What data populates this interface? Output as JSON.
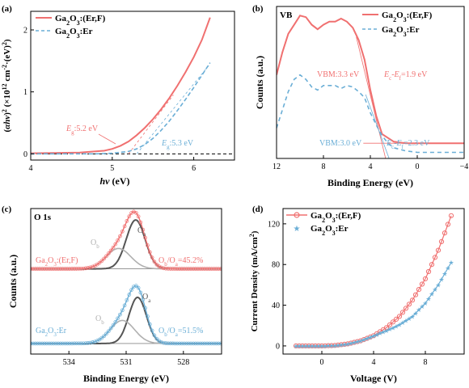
{
  "colors": {
    "red": "#f07070",
    "blue": "#6aaed6",
    "dark": "#555555",
    "light": "#b0b0b0"
  },
  "panels": {
    "a": {
      "label": "(a)",
      "legend": [
        {
          "base": "Ga",
          "sub1": "2",
          "mid": "O",
          "sub2": "3",
          "tail": ":(Er,F)"
        },
        {
          "base": "Ga",
          "sub1": "2",
          "mid": "O",
          "sub2": "3",
          "tail": ":Er"
        }
      ],
      "xlabel": "hν (eV)",
      "ylabel": "(αhν)² (×10¹² cm⁻²·(eV)²)",
      "ann_red": {
        "e": "E",
        "sub": "g",
        "val": ":5.2 eV"
      },
      "ann_blue": {
        "e": "E",
        "sub": "g",
        "val": ":5.3 eV"
      }
    },
    "b": {
      "label": "(b)",
      "tag": "VB",
      "legend": [
        {
          "base": "Ga",
          "sub1": "2",
          "mid": "O",
          "sub2": "3",
          "tail": ":(Er,F)"
        },
        {
          "base": "Ga",
          "sub1": "2",
          "mid": "O",
          "sub2": "3",
          "tail": ":Er"
        }
      ],
      "xlabel": "Binding Energy (eV)",
      "ylabel": "Counts (a.u.)",
      "ann_red_vbm": "VBM:3.3 eV",
      "ann_red_diff": {
        "a": "E",
        "asub": "c",
        "b": "-E",
        "bsub": "f",
        "val": "=1.9 eV"
      },
      "ann_blue_vbm": "VBM:3.0 eV",
      "ann_blue_diff": {
        "a": "E",
        "asub": "c",
        "b": "-E",
        "bsub": "f",
        "val": "=2.3 eV"
      }
    },
    "c": {
      "label": "(c)",
      "tag": "O 1s",
      "xlabel": "Binding Energy (eV)",
      "ylabel": "Counts (a.u.)",
      "sample_red": {
        "base": "Ga",
        "sub1": "2",
        "mid": "O",
        "sub2": "3",
        "tail": ":(Er,F)"
      },
      "sample_blue": {
        "base": "Ga",
        "sub1": "2",
        "mid": "O",
        "sub2": "3",
        "tail": ":Er"
      },
      "ratio_red": {
        "a": "O",
        "asub": "b",
        "b": "/O",
        "bsub": "a",
        "val": "=45.2%"
      },
      "ratio_blue": {
        "a": "O",
        "asub": "b",
        "b": "/O",
        "bsub": "a",
        "val": "=51.5%"
      },
      "peak_oa": {
        "base": "O",
        "sub": "a"
      },
      "peak_ob": {
        "base": "O",
        "sub": "b"
      }
    },
    "d": {
      "label": "(d)",
      "legend": [
        {
          "base": "Ga",
          "sub1": "2",
          "mid": "O",
          "sub2": "3",
          "tail": ":(Er,F)"
        },
        {
          "base": "Ga",
          "sub1": "2",
          "mid": "O",
          "sub2": "3",
          "tail": ":Er"
        }
      ],
      "xlabel": "Voltage (V)",
      "ylabel": "Current Density (mA/cm²)"
    }
  },
  "chart_data": [
    {
      "panel": "a",
      "type": "line",
      "xlabel": "hν (eV)",
      "ylabel": "(αhν)² (×10¹² cm⁻²·(eV)²)",
      "xlim": [
        4,
        6.5
      ],
      "ylim": [
        -0.1,
        2.3
      ],
      "xticks": [
        4,
        5,
        6
      ],
      "yticks": [
        0,
        1,
        2
      ],
      "series": [
        {
          "name": "Ga2O3:(Er,F)",
          "style": "solid",
          "color": "#f07070",
          "x": [
            4.0,
            4.6,
            4.9,
            5.0,
            5.1,
            5.2,
            5.3,
            5.4,
            5.5,
            5.6,
            5.7,
            5.8,
            5.9,
            6.0,
            6.1,
            6.2
          ],
          "y": [
            0.01,
            0.02,
            0.05,
            0.08,
            0.13,
            0.2,
            0.3,
            0.42,
            0.56,
            0.72,
            0.9,
            1.1,
            1.32,
            1.56,
            1.84,
            2.2
          ]
        },
        {
          "name": "Ga2O3:Er",
          "style": "dashed",
          "color": "#6aaed6",
          "x": [
            4.0,
            4.8,
            5.0,
            5.2,
            5.3,
            5.4,
            5.5,
            5.6,
            5.7,
            5.8,
            5.9,
            6.0,
            6.1,
            6.2
          ],
          "y": [
            0.0,
            0.0,
            0.01,
            0.04,
            0.08,
            0.15,
            0.25,
            0.38,
            0.53,
            0.7,
            0.88,
            1.07,
            1.27,
            1.47
          ]
        }
      ],
      "annotations": [
        "Eg:5.2 eV",
        "Eg:5.3 eV"
      ]
    },
    {
      "panel": "b",
      "type": "line",
      "xlabel": "Binding Energy (eV)",
      "ylabel": "Counts (a.u.)",
      "xlim": [
        12,
        -4
      ],
      "xticks": [
        12,
        8,
        4,
        0,
        -4
      ],
      "series": [
        {
          "name": "Ga2O3:(Er,F)",
          "style": "solid",
          "color": "#f07070",
          "x": [
            12.0,
            11.5,
            11.0,
            10.5,
            10.0,
            9.5,
            9.0,
            8.5,
            8.0,
            7.5,
            7.0,
            6.5,
            6.0,
            5.5,
            5.0,
            4.5,
            4.0,
            3.5,
            3.0,
            2.0,
            1.0,
            0.0,
            -2.0,
            -4.0
          ],
          "y": [
            0.55,
            0.7,
            0.82,
            0.88,
            0.94,
            0.93,
            0.88,
            0.85,
            0.88,
            0.9,
            0.9,
            0.92,
            0.9,
            0.86,
            0.78,
            0.65,
            0.45,
            0.28,
            0.16,
            0.11,
            0.1,
            0.1,
            0.1,
            0.1
          ]
        },
        {
          "name": "Ga2O3:Er",
          "style": "dashed",
          "color": "#6aaed6",
          "x": [
            12.0,
            11.5,
            11.0,
            10.5,
            10.0,
            9.5,
            9.0,
            8.5,
            8.0,
            7.5,
            7.0,
            6.5,
            6.0,
            5.5,
            5.0,
            4.5,
            4.0,
            3.5,
            3.0,
            2.5,
            2.0,
            1.0,
            0.0,
            -2.0,
            -4.0
          ],
          "y": [
            0.2,
            0.32,
            0.44,
            0.52,
            0.55,
            0.52,
            0.47,
            0.45,
            0.48,
            0.48,
            0.48,
            0.46,
            0.48,
            0.47,
            0.44,
            0.4,
            0.3,
            0.22,
            0.15,
            0.1,
            0.07,
            0.05,
            0.04,
            0.04,
            0.04
          ]
        }
      ],
      "annotations": [
        "VBM:3.3 eV",
        "Ec-Ef=1.9 eV",
        "VBM:3.0 eV",
        "Ec-Ef=2.3 eV"
      ]
    },
    {
      "panel": "c",
      "type": "line",
      "xlabel": "Binding Energy (eV)",
      "ylabel": "Counts (a.u.)",
      "xlim": [
        536,
        526
      ],
      "xticks": [
        534,
        531,
        528
      ],
      "spectra": [
        {
          "name": "Ga2O3:(Er,F)",
          "color": "#f07070",
          "offset": 0.55,
          "components": [
            {
              "name": "Oa",
              "center": 530.5,
              "height": 0.36,
              "width": 0.7
            },
            {
              "name": "Ob",
              "center": 531.4,
              "height": 0.15,
              "width": 0.9
            }
          ]
        },
        {
          "name": "Ga2O3:Er",
          "color": "#6aaed6",
          "offset": 0.0,
          "components": [
            {
              "name": "Oa",
              "center": 530.4,
              "height": 0.34,
              "width": 0.65
            },
            {
              "name": "Ob",
              "center": 531.2,
              "height": 0.17,
              "width": 0.9
            }
          ]
        }
      ],
      "annotations": [
        "Ob/Oa=45.2%",
        "Ob/Oa=51.5%"
      ]
    },
    {
      "panel": "d",
      "type": "line",
      "xlabel": "Voltage (V)",
      "ylabel": "Current Density (mA/cm²)",
      "xlim": [
        -3,
        11
      ],
      "ylim": [
        -8,
        135
      ],
      "xticks": [
        0,
        4,
        8
      ],
      "yticks": [
        0,
        40,
        80,
        120
      ],
      "series": [
        {
          "name": "Ga2O3:(Er,F)",
          "marker": "circle",
          "color": "#f07070",
          "x": [
            -2,
            -1,
            0,
            1,
            2,
            3,
            4,
            5,
            6,
            7,
            8,
            9,
            10
          ],
          "y": [
            0,
            0,
            0,
            0.5,
            2,
            5,
            10,
            18,
            29,
            45,
            66,
            94,
            128
          ]
        },
        {
          "name": "Ga2O3:Er",
          "marker": "star",
          "color": "#6aaed6",
          "x": [
            -2,
            -1,
            0,
            1,
            2,
            3,
            4,
            5,
            6,
            7,
            8,
            9,
            10
          ],
          "y": [
            0,
            0,
            0,
            0.5,
            2,
            5,
            10,
            15,
            21,
            29,
            42,
            60,
            82
          ]
        }
      ]
    }
  ]
}
